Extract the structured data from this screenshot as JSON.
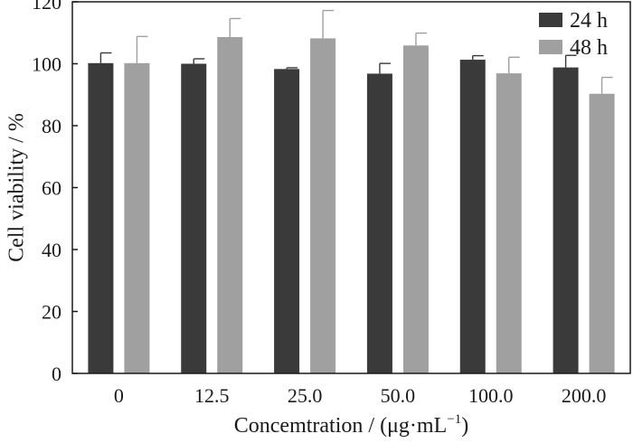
{
  "chart_data": {
    "type": "bar",
    "xlabel": "Concemtration / (μg·mL",
    "xlabel_sup": "−1",
    "xlabel_end": ")",
    "ylabel": "Cell viability / %",
    "ylim": [
      0,
      120
    ],
    "yticks": [
      0,
      20,
      40,
      60,
      80,
      100,
      120
    ],
    "categories": [
      "0",
      "12.5",
      "25.0",
      "50.0",
      "100.0",
      "200.0"
    ],
    "series": [
      {
        "name": "24 h",
        "color": "#3a3a3a",
        "values": [
          100.2,
          100.0,
          98.3,
          96.8,
          101.3,
          98.8
        ],
        "errors": [
          3.3,
          1.6,
          0.4,
          3.3,
          1.3,
          3.9
        ]
      },
      {
        "name": "48 h",
        "color": "#a0a0a0",
        "values": [
          100.2,
          108.6,
          108.2,
          105.9,
          96.9,
          90.3
        ],
        "errors": [
          8.6,
          6.0,
          9.0,
          4.0,
          5.2,
          5.3
        ]
      }
    ],
    "legend_position": "top-right",
    "grid": false
  }
}
